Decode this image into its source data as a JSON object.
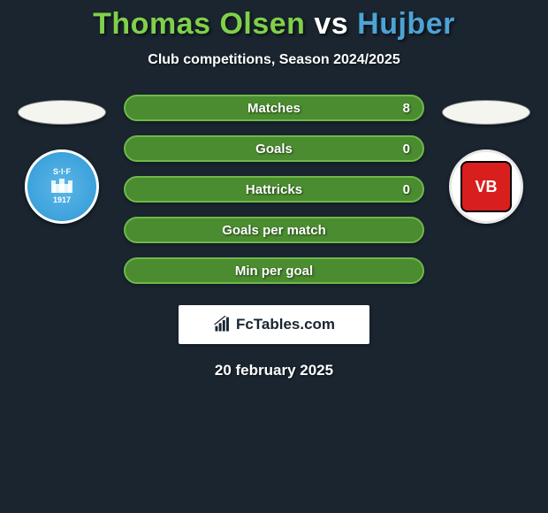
{
  "title": {
    "player1": "Thomas Olsen",
    "vs": "vs",
    "player2": "Hujber",
    "player1_color": "#7fd04a",
    "vs_color": "#ffffff",
    "player2_color": "#4da3d4"
  },
  "subtitle": "Club competitions, Season 2024/2025",
  "left_club": {
    "abbrev_top": "S·I·F",
    "abbrev_bottom": "1917"
  },
  "right_club": {
    "abbrev": "VB"
  },
  "stats": [
    {
      "label": "Matches",
      "value_right": "8",
      "bg": "#4a8c2f",
      "border": "#6fb84a"
    },
    {
      "label": "Goals",
      "value_right": "0",
      "bg": "#4a8c2f",
      "border": "#6fb84a"
    },
    {
      "label": "Hattricks",
      "value_right": "0",
      "bg": "#4a8c2f",
      "border": "#6fb84a"
    },
    {
      "label": "Goals per match",
      "value_right": "",
      "bg": "#4a8c2f",
      "border": "#6fb84a"
    },
    {
      "label": "Min per goal",
      "value_right": "",
      "bg": "#4a8c2f",
      "border": "#6fb84a"
    }
  ],
  "watermark": "FcTables.com",
  "date": "20 february 2025",
  "colors": {
    "background": "#1a2530",
    "ellipse_fill": "#f5f5f0"
  }
}
